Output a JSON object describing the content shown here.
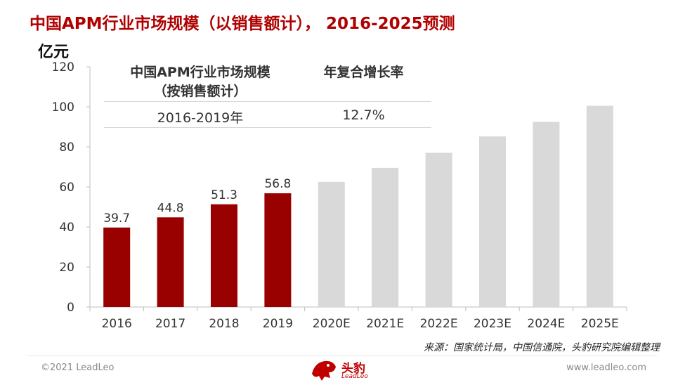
{
  "title": "中国APM行业市场规模（以销售额计）， 2016-2025预测",
  "unit": "亿元",
  "table": {
    "header_col1": "中国APM行业市场规模",
    "header_col1_sub": "（按销售额计）",
    "header_col2": "年复合增长率",
    "row_period": "2016-2019年",
    "row_cagr": "12.7%"
  },
  "source": "来源：国家统计局，中国信通院，头豹研究院编辑整理",
  "footer": {
    "copyright": "©2021 LeadLeo",
    "website": "www.leadleo.com",
    "logo_text": "头豹",
    "logo_sub": "LeadLeo"
  },
  "colors": {
    "actual": "#990000",
    "forecast": "#d9d9d9",
    "title": "#b00000"
  },
  "chart_data": {
    "type": "bar",
    "categories": [
      "2016",
      "2017",
      "2018",
      "2019",
      "2020E",
      "2021E",
      "2022E",
      "2023E",
      "2024E",
      "2025E"
    ],
    "values": [
      39.7,
      44.8,
      51.3,
      56.8,
      62.5,
      69.5,
      77.0,
      85.2,
      92.5,
      100.5
    ],
    "data_labels": [
      "39.7",
      "44.8",
      "51.3",
      "56.8",
      "",
      "",
      "",
      "",
      "",
      ""
    ],
    "forecast_from_index": 4,
    "ylim": [
      0,
      120
    ],
    "yticks": [
      0,
      20,
      40,
      60,
      80,
      100,
      120
    ],
    "ylabel": "亿元",
    "xlabel": "",
    "grid": false,
    "legend": "none"
  }
}
